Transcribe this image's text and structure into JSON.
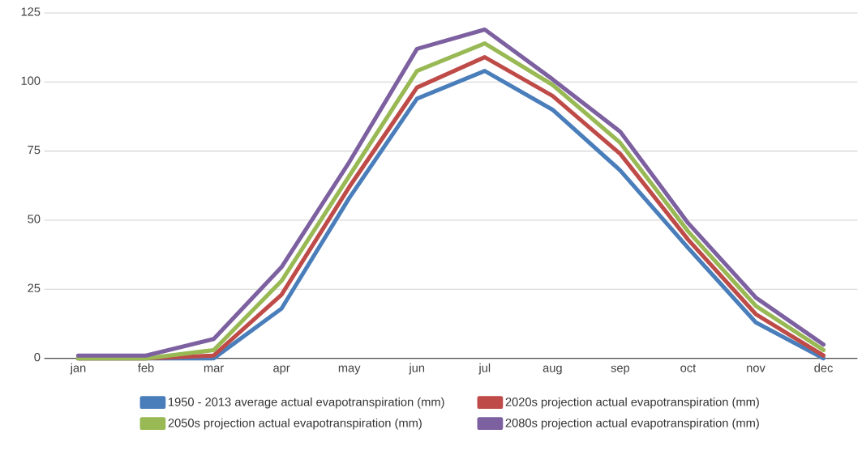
{
  "chart_data": {
    "type": "line",
    "categories": [
      "jan",
      "feb",
      "mar",
      "apr",
      "may",
      "jun",
      "jul",
      "aug",
      "sep",
      "oct",
      "nov",
      "dec"
    ],
    "series": [
      {
        "name": "1950 - 2013 average actual evapotranspiration (mm)",
        "color": "#4a7ebb",
        "values": [
          0,
          0,
          0,
          18,
          58,
          94,
          104,
          90,
          68,
          40,
          13,
          0
        ]
      },
      {
        "name": "2020s projection actual evapotranspiration (mm)",
        "color": "#be4b48",
        "values": [
          0,
          0,
          1,
          23,
          62,
          98,
          109,
          95,
          74,
          43,
          16,
          1
        ]
      },
      {
        "name": "2050s projection actual evapotranspiration (mm)",
        "color": "#98b954",
        "values": [
          0,
          0,
          3,
          28,
          66,
          104,
          114,
          99,
          78,
          46,
          19,
          3
        ]
      },
      {
        "name": "2080s projection actual evapotranspiration (mm)",
        "color": "#7d60a0",
        "values": [
          1,
          1,
          7,
          33,
          71,
          112,
          119,
          101,
          82,
          49,
          22,
          5
        ]
      }
    ],
    "ylim": [
      0,
      125
    ],
    "yticks": [
      0,
      25,
      50,
      75,
      100,
      125
    ],
    "grid": "y",
    "legend": "bottom",
    "marker": "none",
    "line_style": "solid"
  }
}
